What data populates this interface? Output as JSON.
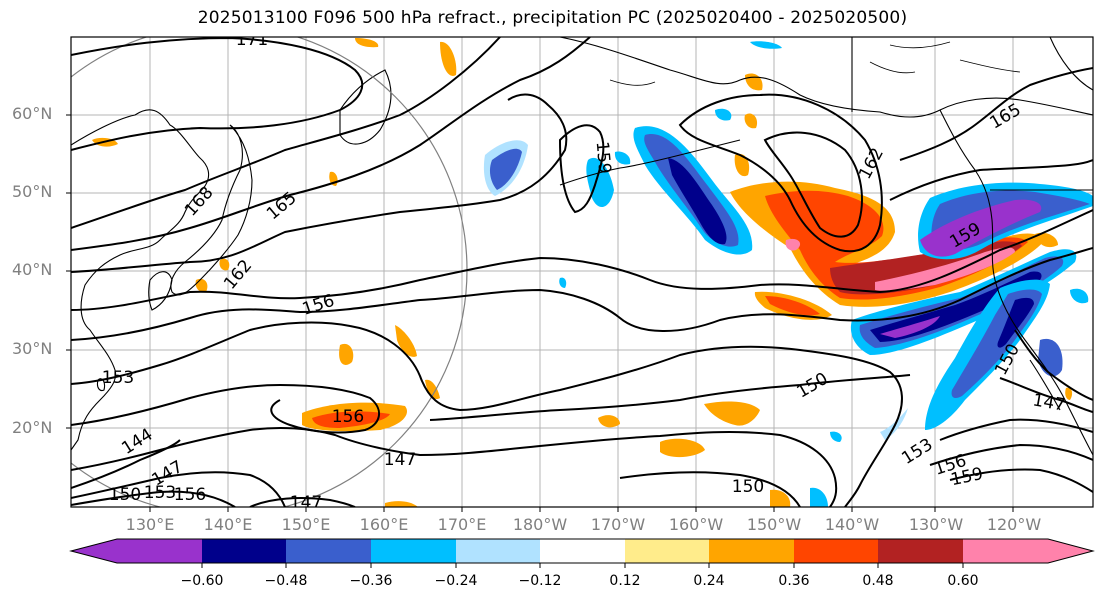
{
  "title": "2025013100 F096 500 hPa refract., precipitation PC (2025020400 - 2025020500)",
  "lat_labels": [
    "60°N",
    "50°N",
    "40°N",
    "30°N",
    "20°N"
  ],
  "lon_labels": [
    "130°E",
    "140°E",
    "150°E",
    "160°E",
    "170°E",
    "180°W",
    "170°W",
    "160°W",
    "150°W",
    "140°W",
    "130°W",
    "120°W"
  ],
  "colorbar": {
    "tick_labels": [
      "−0.60",
      "−0.48",
      "−0.36",
      "−0.24",
      "−0.12",
      "0.12",
      "0.24",
      "0.36",
      "0.48",
      "0.60"
    ],
    "colors": [
      "#9932cc",
      "#00008b",
      "#3a5fcd",
      "#00bfff",
      "#b0e2ff",
      "#ffffff",
      "#ffec8b",
      "#ffa500",
      "#ff4500",
      "#b22222",
      "#ff82ab"
    ]
  },
  "contour_labels": [
    "171",
    "168",
    "165",
    "162",
    "159",
    "156",
    "153",
    "150",
    "147",
    "144",
    "165",
    "162",
    "159",
    "156",
    "150",
    "153",
    "156",
    "159",
    "147",
    "150",
    "147",
    "147",
    "156",
    "153",
    "150"
  ]
}
